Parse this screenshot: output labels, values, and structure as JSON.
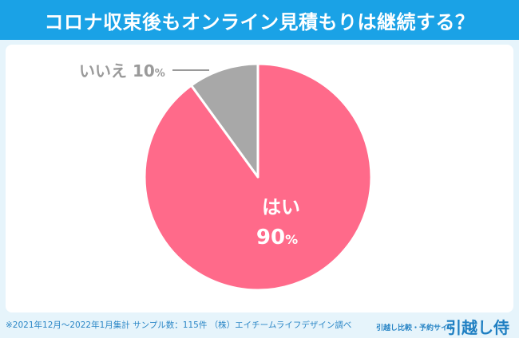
{
  "title": "コロナ収束後もオンライン見積もりは継続する？",
  "footer": {
    "note": "※2021年12月〜2022年1月集計 サンプル数：115件 （株）エイチームライフデザイン調べ",
    "site": "引越し比較・予約サイト",
    "brand": "引越し侍"
  },
  "chart_data": {
    "type": "pie",
    "title": "コロナ収束後もオンライン見積もりは継続する？",
    "slices": [
      {
        "label": "はい",
        "value": 90,
        "display": "90",
        "unit": "%",
        "color": "#ff6a8a",
        "label_color": "#ffffff"
      },
      {
        "label": "いいえ",
        "value": 10,
        "display": "10",
        "unit": "%",
        "color": "#a8a8a8",
        "label_color": "#9a9a9a"
      }
    ]
  }
}
